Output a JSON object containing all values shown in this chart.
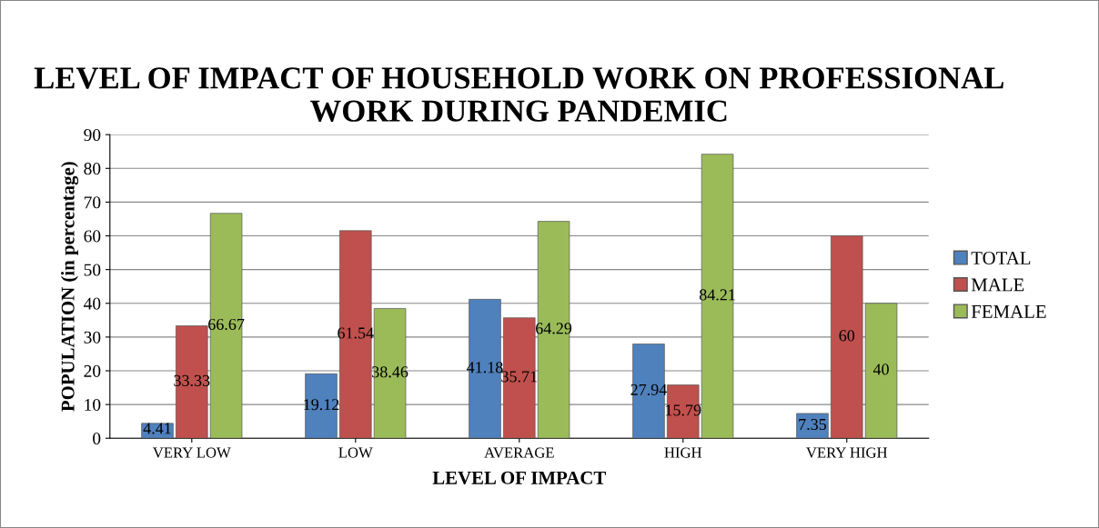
{
  "chart_data": {
    "type": "bar",
    "title": "LEVEL OF IMPACT OF HOUSEHOLD WORK ON PROFESSIONAL WORK DURING PANDEMIC",
    "xlabel": "LEVEL OF IMPACT",
    "ylabel": "POPULATION (in percentage)",
    "categories": [
      "VERY LOW",
      "LOW",
      "AVERAGE",
      "HIGH",
      "VERY HIGH"
    ],
    "series": [
      {
        "name": "TOTAL",
        "color": "#4f81bd",
        "values": [
          4.41,
          19.12,
          41.18,
          27.94,
          7.35
        ]
      },
      {
        "name": "MALE",
        "color": "#c0504d",
        "values": [
          33.33,
          61.54,
          35.71,
          15.79,
          60
        ]
      },
      {
        "name": "FEMALE",
        "color": "#9bbb59",
        "values": [
          66.67,
          38.46,
          64.29,
          84.21,
          40
        ]
      }
    ],
    "ylim": [
      0,
      90
    ],
    "yticks": [
      0,
      10,
      20,
      30,
      40,
      50,
      60,
      70,
      80,
      90
    ],
    "grid": "y",
    "legend": "right",
    "data_labels": true
  }
}
